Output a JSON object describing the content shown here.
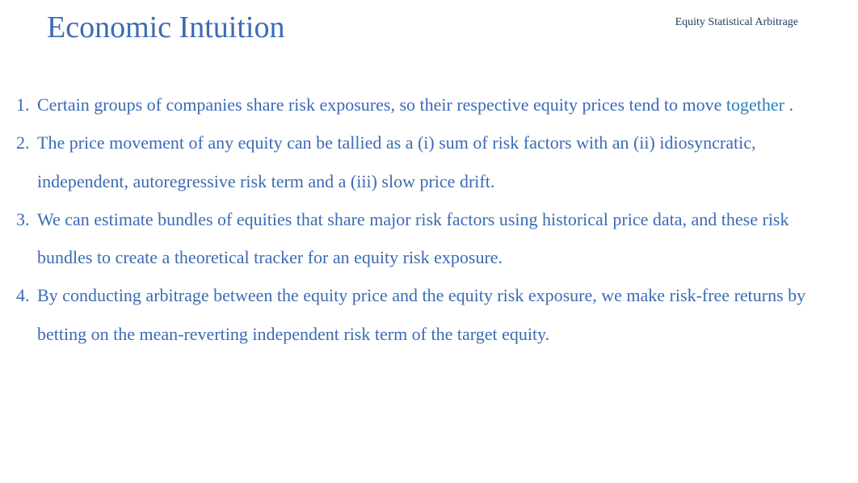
{
  "header": {
    "title": "Economic Intuition",
    "subtitle": "Equity Statistical Arbitrage"
  },
  "content": {
    "items": [
      {
        "pre": "Certain groups of companies share risk exposures, so their respective equity prices tend to move ",
        "emphasis": "together",
        "post": " ."
      },
      {
        "pre": "The price movement of any equity can be tallied as a (i) sum of risk factors with an (ii) idiosyncratic, independent, autoregressive risk term and a (iii) slow price drift.",
        "emphasis": "",
        "post": ""
      },
      {
        "pre": "We can estimate bundles of equities that share major risk factors using historical price data, and these risk bundles to create a theoretical tracker for an equity risk exposure.",
        "emphasis": "",
        "post": ""
      },
      {
        "pre": "By conducting arbitrage between the equity price and the equity risk exposure, we make risk-free returns by betting on the mean-reverting independent risk term of the target equity.",
        "emphasis": "",
        "post": ""
      }
    ]
  },
  "styles": {
    "title_color": "#3b6bb5",
    "subtitle_color": "#1f3a5f",
    "text_color": "#3b6bb5",
    "emphasis_color": "#2a7fb8",
    "background_color": "#ffffff",
    "title_fontsize": 38,
    "subtitle_fontsize": 14,
    "body_fontsize": 22
  }
}
